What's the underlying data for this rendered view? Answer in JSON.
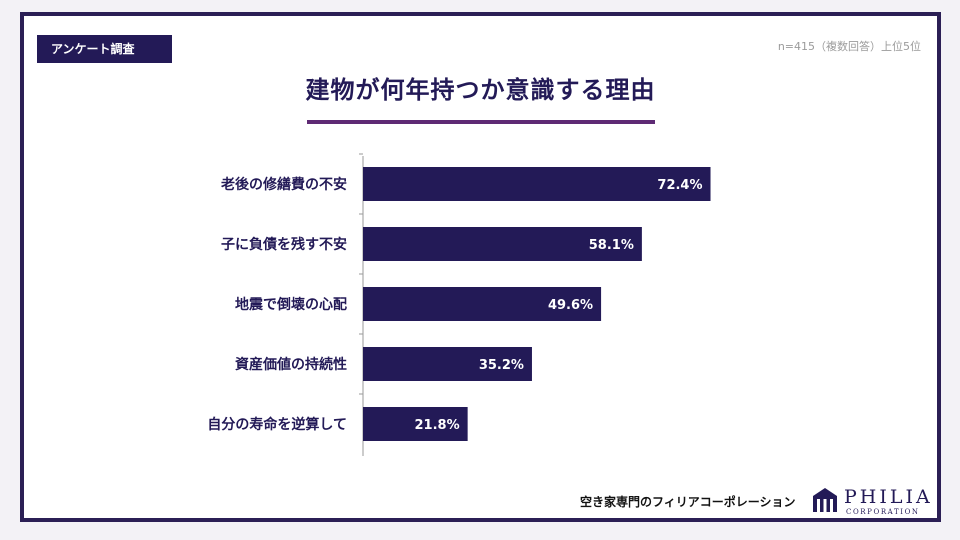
{
  "header": {
    "tag_label": "アンケート調査",
    "sample_note": "n=415（複数回答）上位5位"
  },
  "chart_data": {
    "type": "bar",
    "orientation": "horizontal",
    "title": "建物が何年持つか意識する理由",
    "categories": [
      "老後の修繕費の不安",
      "子に負債を残す不安",
      "地震で倒壊の心配",
      "資産価値の持続性",
      "自分の寿命を逆算して"
    ],
    "values": [
      72.4,
      58.1,
      49.6,
      35.2,
      21.8
    ],
    "value_labels": [
      "72.4%",
      "58.1%",
      "49.6%",
      "35.2%",
      "21.8%"
    ],
    "unit": "%",
    "xlim": [
      0,
      100
    ],
    "grid": false,
    "legend": "none",
    "bar_color": "#231a57",
    "label_color": "#231a57"
  },
  "footer": {
    "company": "空き家専門のフィリアコーポレーション",
    "logo_name": "PHILIA",
    "logo_sub": "CORPORATION"
  },
  "colors": {
    "frame": "#2b1f55",
    "accent_rule": "#5e2a74",
    "primary": "#231a57"
  }
}
